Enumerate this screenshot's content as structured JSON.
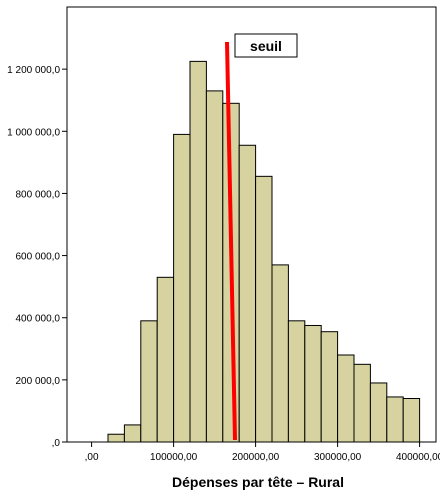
{
  "chart_data": {
    "type": "bar",
    "xlabel": "Dépenses par tête – Rural",
    "ylabel": "",
    "x_ticks": [
      {
        "value": 0,
        "label": ",00"
      },
      {
        "value": 100000,
        "label": "100000,00"
      },
      {
        "value": 200000,
        "label": "200000,00"
      },
      {
        "value": 300000,
        "label": "300000,00"
      },
      {
        "value": 400000,
        "label": "400000,00"
      }
    ],
    "y_ticks": [
      {
        "value": 0,
        "label": ",0"
      },
      {
        "value": 200000,
        "label": "200 000,0"
      },
      {
        "value": 400000,
        "label": "400 000,0"
      },
      {
        "value": 600000,
        "label": "600 000,0"
      },
      {
        "value": 800000,
        "label": "800 000,0"
      },
      {
        "value": 1000000,
        "label": "1 000 000,0"
      },
      {
        "value": 1200000,
        "label": "1 200 000,0"
      }
    ],
    "xlim": [
      -30000,
      420000
    ],
    "ylim": [
      0,
      1400000
    ],
    "bin_width": 20000,
    "bins_start": [
      20000,
      40000,
      60000,
      80000,
      100000,
      120000,
      140000,
      160000,
      180000,
      200000,
      220000,
      240000,
      260000,
      280000,
      300000,
      320000,
      340000,
      360000,
      380000
    ],
    "values": [
      25000,
      55000,
      390000,
      530000,
      990000,
      1225000,
      1130000,
      1090000,
      955000,
      855000,
      570000,
      390000,
      375000,
      355000,
      280000,
      250000,
      190000,
      145000,
      140000
    ],
    "bar_color": "#d6d3a0",
    "threshold": {
      "label": "seuil",
      "value": 170000,
      "color": "#ff0000"
    },
    "grid": false
  }
}
